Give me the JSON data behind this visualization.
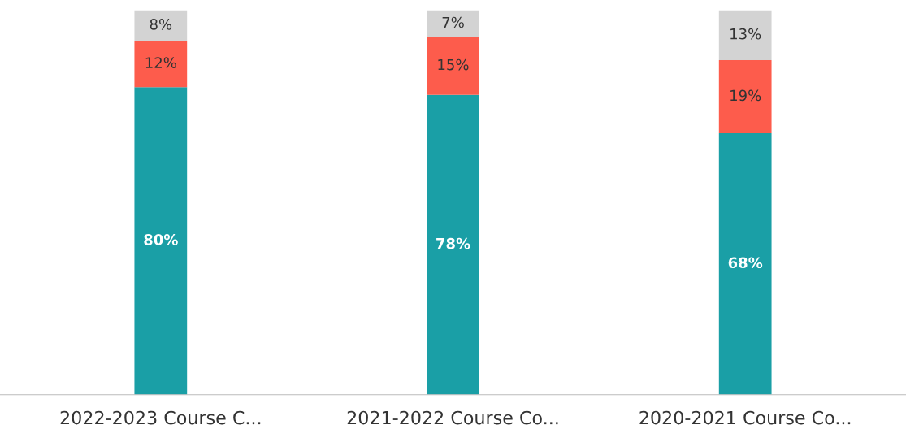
{
  "chart_data": {
    "type": "bar",
    "stacked": true,
    "tick_labels": "x",
    "categories": [
      "2022-2023 Course C...",
      "2021-2022 Course Co...",
      "2020-2021 Course Co..."
    ],
    "series": [
      {
        "color": "#1a9fa6",
        "values": [
          80,
          78,
          68
        ],
        "value_labels": [
          "80%",
          "78%",
          "68%"
        ]
      },
      {
        "color": "#fd5c4c",
        "values": [
          12,
          15,
          19
        ],
        "value_labels": [
          "12%",
          "15%",
          "19%"
        ]
      },
      {
        "color": "#d3d3d3",
        "values": [
          8,
          7,
          13
        ],
        "value_labels": [
          "8%",
          "7%",
          "13%"
        ]
      }
    ]
  }
}
